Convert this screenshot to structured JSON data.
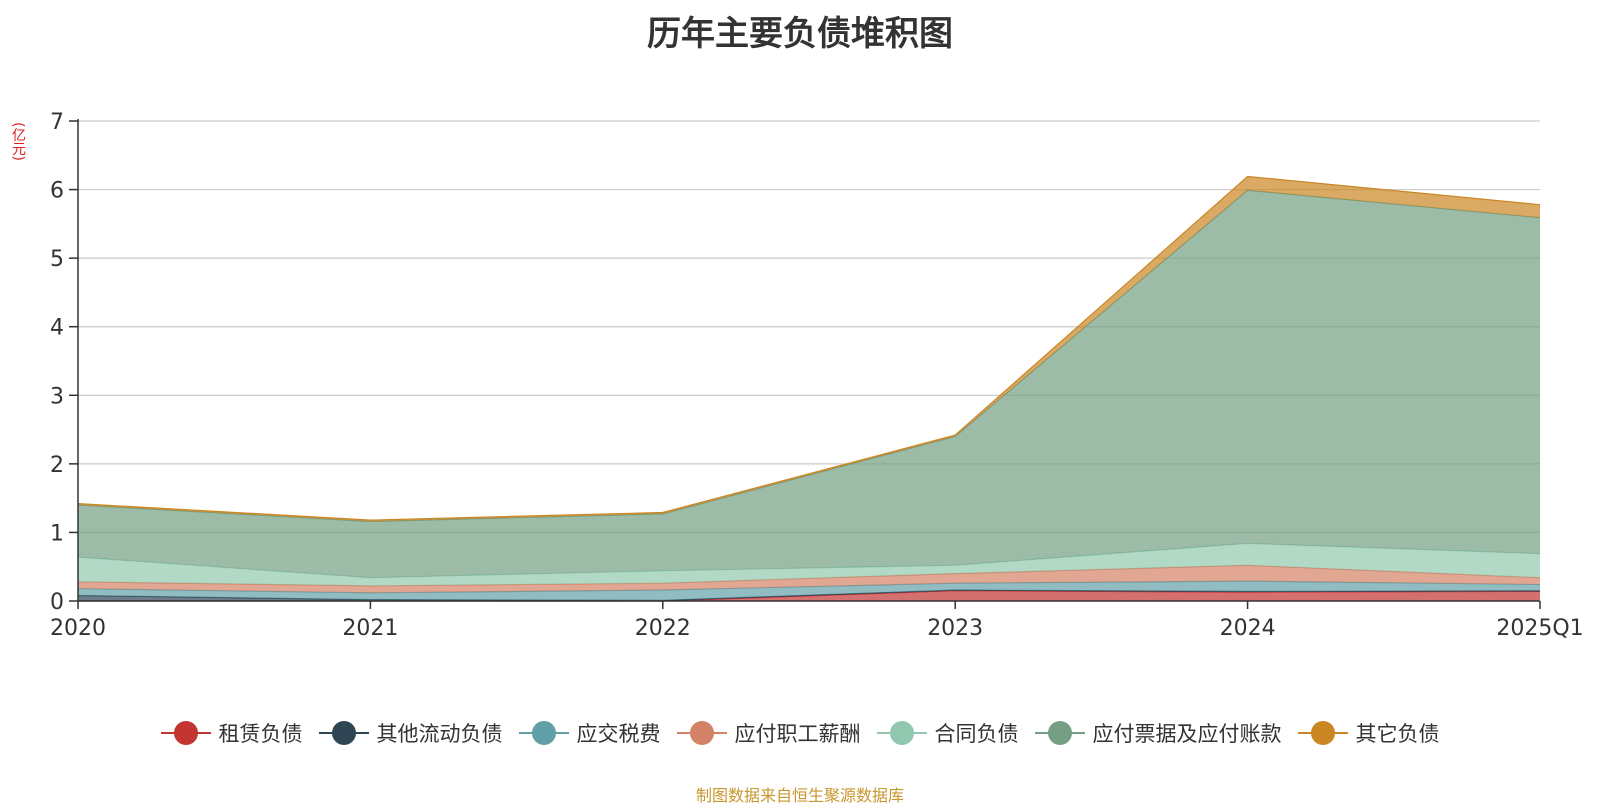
{
  "chart_data": {
    "type": "area",
    "stacked": true,
    "title": "历年主要负债堆积图",
    "unit_label": "(亿元)",
    "categories": [
      "2020",
      "2021",
      "2022",
      "2023",
      "2024",
      "2025Q1"
    ],
    "y_ticks": [
      "0",
      "1",
      "2",
      "3",
      "4",
      "5",
      "6",
      "7"
    ],
    "ylim": [
      0,
      7
    ],
    "grid": true,
    "legend_position": "bottom",
    "series": [
      {
        "name": "租赁负债",
        "color": "#c23531",
        "values": [
          0,
          0,
          0,
          0.15,
          0.13,
          0.14
        ]
      },
      {
        "name": "其他流动负债",
        "color": "#2f4554",
        "values": [
          0.08,
          0.02,
          0.01,
          0.01,
          0.01,
          0.01
        ]
      },
      {
        "name": "应交税费",
        "color": "#61a0a8",
        "values": [
          0.1,
          0.1,
          0.15,
          0.1,
          0.15,
          0.09
        ]
      },
      {
        "name": "应付职工薪酬",
        "color": "#d48265",
        "values": [
          0.1,
          0.1,
          0.1,
          0.14,
          0.23,
          0.1
        ]
      },
      {
        "name": "合同负债",
        "color": "#91c7ae",
        "values": [
          0.36,
          0.12,
          0.18,
          0.12,
          0.32,
          0.35
        ]
      },
      {
        "name": "应付票据及应付账款",
        "color": "#749f83",
        "values": [
          0.76,
          0.82,
          0.83,
          1.88,
          5.15,
          4.9
        ]
      },
      {
        "name": "其它负债",
        "color": "#ca8622",
        "values": [
          0.02,
          0.02,
          0.02,
          0.02,
          0.2,
          0.19
        ]
      }
    ]
  },
  "footer": {
    "source": "制图数据来自恒生聚源数据库"
  }
}
